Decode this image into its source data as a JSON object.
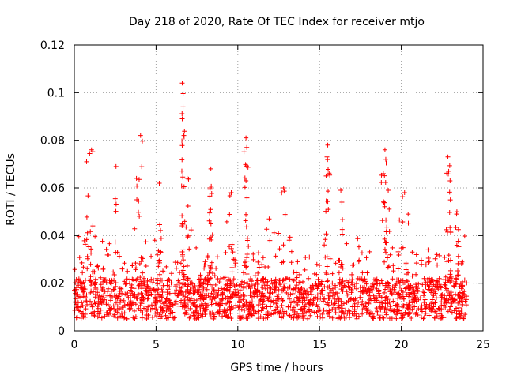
{
  "chart_data": {
    "type": "scatter",
    "title": "Day 218 of 2020, Rate Of TEC Index for receiver mtjo",
    "xlabel": "GPS time / hours",
    "ylabel": "ROTI / TECUs",
    "xlim": [
      0,
      25
    ],
    "ylim": [
      0,
      0.12
    ],
    "xticks": [
      0,
      5,
      10,
      15,
      20,
      25
    ],
    "xtick_labels": [
      "0",
      "5",
      "10",
      "15",
      "20",
      "25"
    ],
    "yticks": [
      0,
      0.02,
      0.04,
      0.06,
      0.08,
      0.1,
      0.12
    ],
    "ytick_labels": [
      "0",
      "0.02",
      "0.04",
      "0.06",
      "0.08",
      "0.1",
      "0.12"
    ],
    "grid": true,
    "marker": "+",
    "series_color": "#ff0000",
    "data_range_hours": [
      0,
      24
    ],
    "baseline_range": [
      0.005,
      0.022
    ],
    "peaks": [
      {
        "x": 1.05,
        "y": 0.076
      },
      {
        "x": 0.75,
        "y": 0.071
      },
      {
        "x": 2.55,
        "y": 0.069
      },
      {
        "x": 4.05,
        "y": 0.082
      },
      {
        "x": 3.8,
        "y": 0.064
      },
      {
        "x": 5.2,
        "y": 0.062
      },
      {
        "x": 6.6,
        "y": 0.104
      },
      {
        "x": 6.65,
        "y": 0.094
      },
      {
        "x": 6.6,
        "y": 0.089
      },
      {
        "x": 6.7,
        "y": 0.082
      },
      {
        "x": 6.9,
        "y": 0.064
      },
      {
        "x": 8.35,
        "y": 0.068
      },
      {
        "x": 8.3,
        "y": 0.06
      },
      {
        "x": 9.6,
        "y": 0.058
      },
      {
        "x": 10.5,
        "y": 0.081
      },
      {
        "x": 10.55,
        "y": 0.077
      },
      {
        "x": 10.5,
        "y": 0.063
      },
      {
        "x": 12.8,
        "y": 0.06
      },
      {
        "x": 15.5,
        "y": 0.078
      },
      {
        "x": 15.45,
        "y": 0.073
      },
      {
        "x": 15.4,
        "y": 0.065
      },
      {
        "x": 16.3,
        "y": 0.059
      },
      {
        "x": 19.0,
        "y": 0.076
      },
      {
        "x": 19.05,
        "y": 0.072
      },
      {
        "x": 18.9,
        "y": 0.066
      },
      {
        "x": 19.2,
        "y": 0.059
      },
      {
        "x": 20.2,
        "y": 0.058
      },
      {
        "x": 22.85,
        "y": 0.073
      },
      {
        "x": 22.9,
        "y": 0.067
      },
      {
        "x": 23.0,
        "y": 0.055
      },
      {
        "x": 23.4,
        "y": 0.05
      }
    ]
  }
}
